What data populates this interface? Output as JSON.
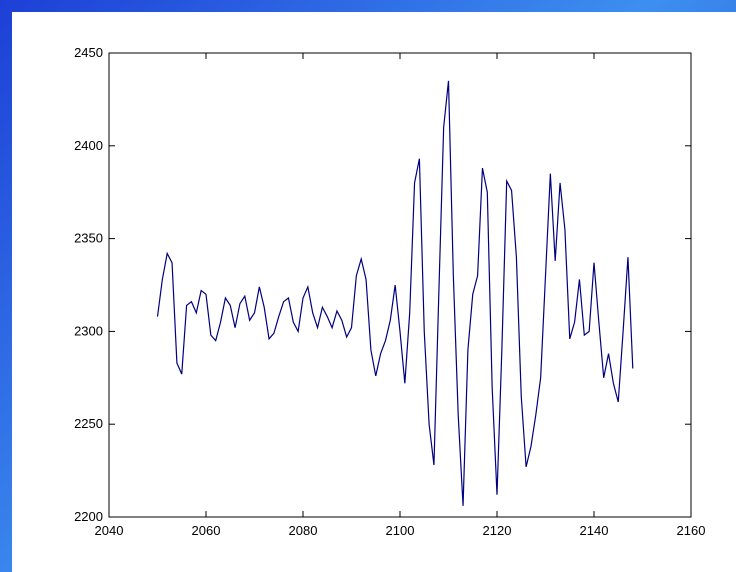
{
  "chart_data": {
    "type": "line",
    "x": [
      2050,
      2051,
      2052,
      2053,
      2054,
      2055,
      2056,
      2057,
      2058,
      2059,
      2060,
      2061,
      2062,
      2063,
      2064,
      2065,
      2066,
      2067,
      2068,
      2069,
      2070,
      2071,
      2072,
      2073,
      2074,
      2075,
      2076,
      2077,
      2078,
      2079,
      2080,
      2081,
      2082,
      2083,
      2084,
      2085,
      2086,
      2087,
      2088,
      2089,
      2090,
      2091,
      2092,
      2093,
      2094,
      2095,
      2096,
      2097,
      2098,
      2099,
      2100,
      2101,
      2102,
      2103,
      2104,
      2105,
      2106,
      2107,
      2108,
      2109,
      2110,
      2111,
      2112,
      2113,
      2114,
      2115,
      2116,
      2117,
      2118,
      2119,
      2120,
      2121,
      2122,
      2123,
      2124,
      2125,
      2126,
      2127,
      2128,
      2129,
      2130,
      2131,
      2132,
      2133,
      2134,
      2135,
      2136,
      2137,
      2138,
      2139,
      2140,
      2141,
      2142,
      2143,
      2144,
      2145,
      2146,
      2147,
      2148
    ],
    "series": [
      {
        "color": "#000080",
        "values": [
          2308,
          2328,
          2342,
          2337,
          2283,
          2277,
          2314,
          2316,
          2310,
          2322,
          2320,
          2298,
          2295,
          2305,
          2318,
          2314,
          2302,
          2315,
          2319,
          2306,
          2310,
          2324,
          2313,
          2296,
          2299,
          2308,
          2316,
          2318,
          2305,
          2300,
          2318,
          2324,
          2310,
          2302,
          2313,
          2308,
          2302,
          2311,
          2306,
          2297,
          2302,
          2330,
          2339,
          2328,
          2290,
          2276,
          2288,
          2295,
          2306,
          2325,
          2300,
          2272,
          2310,
          2380,
          2393,
          2300,
          2250,
          2228,
          2320,
          2410,
          2435,
          2330,
          2255,
          2206,
          2290,
          2320,
          2330,
          2388,
          2375,
          2270,
          2212,
          2290,
          2381,
          2376,
          2340,
          2265,
          2227,
          2238,
          2255,
          2275,
          2330,
          2385,
          2338,
          2380,
          2355,
          2296,
          2305,
          2328,
          2298,
          2300,
          2337,
          2305,
          2275,
          2288,
          2272,
          2262,
          2300,
          2340,
          2280
        ]
      }
    ],
    "xlim": [
      2040,
      2160
    ],
    "xticks": [
      2040,
      2060,
      2080,
      2100,
      2120,
      2140,
      2160
    ],
    "ylim": [
      2200,
      2450
    ],
    "yticks": [
      2200,
      2250,
      2300,
      2350,
      2400,
      2450
    ],
    "grid": false
  }
}
